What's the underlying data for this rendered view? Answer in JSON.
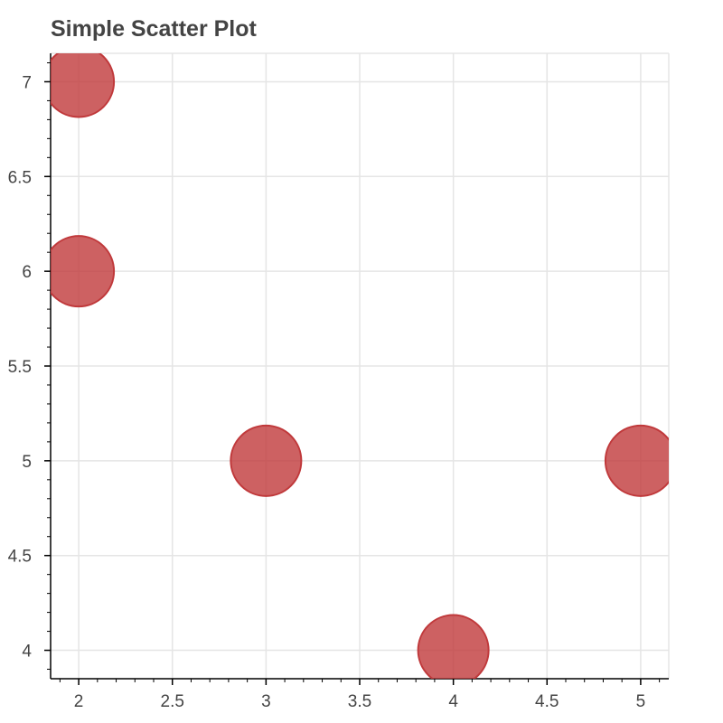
{
  "chart_data": {
    "type": "scatter",
    "title": "Simple Scatter Plot",
    "xlabel": "",
    "ylabel": "",
    "x": [
      2,
      2,
      3,
      4,
      5
    ],
    "y": [
      7,
      6,
      5,
      4,
      5
    ],
    "xlim": [
      1.85,
      5.15
    ],
    "ylim": [
      3.85,
      7.15
    ],
    "x_ticks": [
      2,
      2.5,
      3,
      3.5,
      4,
      4.5,
      5
    ],
    "x_tick_labels": [
      "2",
      "2.5",
      "3",
      "3.5",
      "4",
      "4.5",
      "5"
    ],
    "y_ticks": [
      4,
      4.5,
      5,
      5.5,
      6,
      6.5,
      7
    ],
    "y_tick_labels": [
      "4",
      "4.5",
      "5",
      "5.5",
      "6",
      "6.5",
      "7"
    ],
    "grid": true,
    "legend": "none",
    "marker_color": "#c0393b",
    "marker_opacity": 0.8,
    "grid_color": "#e5e5e5",
    "axis_color": "#000000",
    "text_color": "#444444"
  }
}
